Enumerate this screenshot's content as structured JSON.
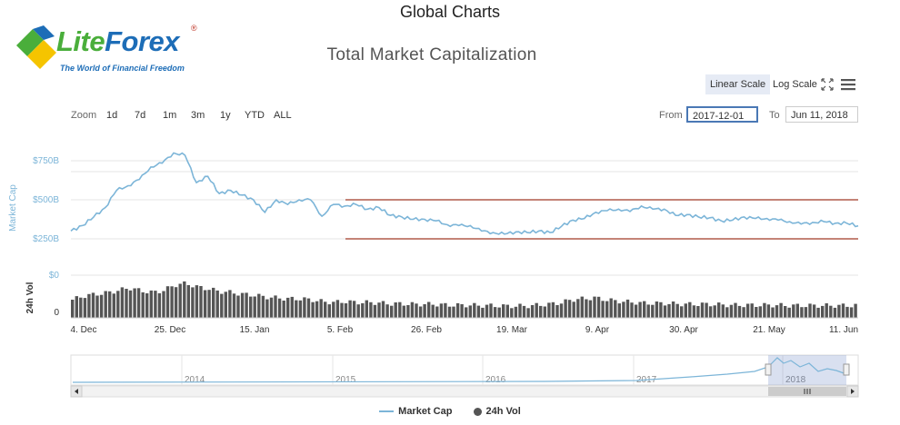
{
  "page": {
    "title": "Global Charts"
  },
  "logo": {
    "word_1": "Lite",
    "word_2": "Forex",
    "registered": "®",
    "tagline": "The World of Financial Freedom"
  },
  "toolbar": {
    "scale_buttons": [
      "Linear Scale",
      "Log Scale"
    ],
    "active_scale": "Linear Scale",
    "zoom_label": "Zoom",
    "zoom_buttons": [
      "1d",
      "7d",
      "1m",
      "3m",
      "1y",
      "YTD",
      "ALL"
    ],
    "from_label": "From",
    "from_value": "2017-12-01",
    "to_label": "To",
    "to_value": "Jun 11, 2018"
  },
  "chart_data": {
    "type": "line",
    "title": "Total Market Capitalization",
    "y_axis": {
      "label": "Market Cap",
      "ticks": [
        "$250B",
        "$500B",
        "$750B"
      ],
      "tick_values": [
        250,
        500,
        750
      ],
      "unit": "billion USD"
    },
    "volume_axis": {
      "label": "24h Vol",
      "ticks": [
        "$0",
        "0"
      ]
    },
    "x_axis": {
      "ticks": [
        "4. Dec",
        "25. Dec",
        "15. Jan",
        "5. Feb",
        "26. Feb",
        "19. Mar",
        "9. Apr",
        "30. Apr",
        "21. May",
        "11. Jun"
      ]
    },
    "series": [
      {
        "name": "Market Cap",
        "color": "#7cb5d8",
        "values": [
          300,
          335,
          390,
          450,
          560,
          590,
          630,
          710,
          735,
          800,
          785,
          610,
          650,
          540,
          560,
          530,
          500,
          420,
          500,
          470,
          500,
          500,
          395,
          470,
          460,
          470,
          440,
          450,
          400,
          390,
          375,
          375,
          365,
          340,
          335,
          335,
          300,
          290,
          280,
          295,
          290,
          300,
          290,
          330,
          370,
          380,
          420,
          430,
          440,
          425,
          460,
          440,
          440,
          400,
          405,
          390,
          385,
          365,
          370,
          390,
          380,
          380,
          370,
          360,
          345,
          355,
          360,
          350,
          350,
          333
        ]
      },
      {
        "name": "24h Vol",
        "color": "#555555",
        "values": [
          40,
          48,
          52,
          55,
          60,
          66,
          60,
          56,
          60,
          72,
          76,
          68,
          64,
          58,
          56,
          52,
          50,
          46,
          44,
          42,
          42,
          40,
          36,
          34,
          36,
          34,
          34,
          33,
          31,
          31,
          30,
          30,
          30,
          28,
          28,
          28,
          27,
          27,
          26,
          26,
          26,
          28,
          30,
          33,
          40,
          42,
          44,
          40,
          37,
          35,
          33,
          32,
          32,
          31,
          30,
          30,
          30,
          29,
          28,
          28,
          28,
          28,
          28,
          27,
          27,
          27,
          27,
          27,
          27,
          27
        ]
      }
    ],
    "reference_lines": [
      500,
      250
    ],
    "reference_line_color": "#b05a4a",
    "navigator": {
      "years": [
        "2014",
        "2015",
        "2016",
        "2017",
        "2018"
      ]
    },
    "legend": {
      "position": "bottom-center",
      "items": [
        "Market Cap",
        "24h Vol"
      ]
    },
    "grid": true
  }
}
